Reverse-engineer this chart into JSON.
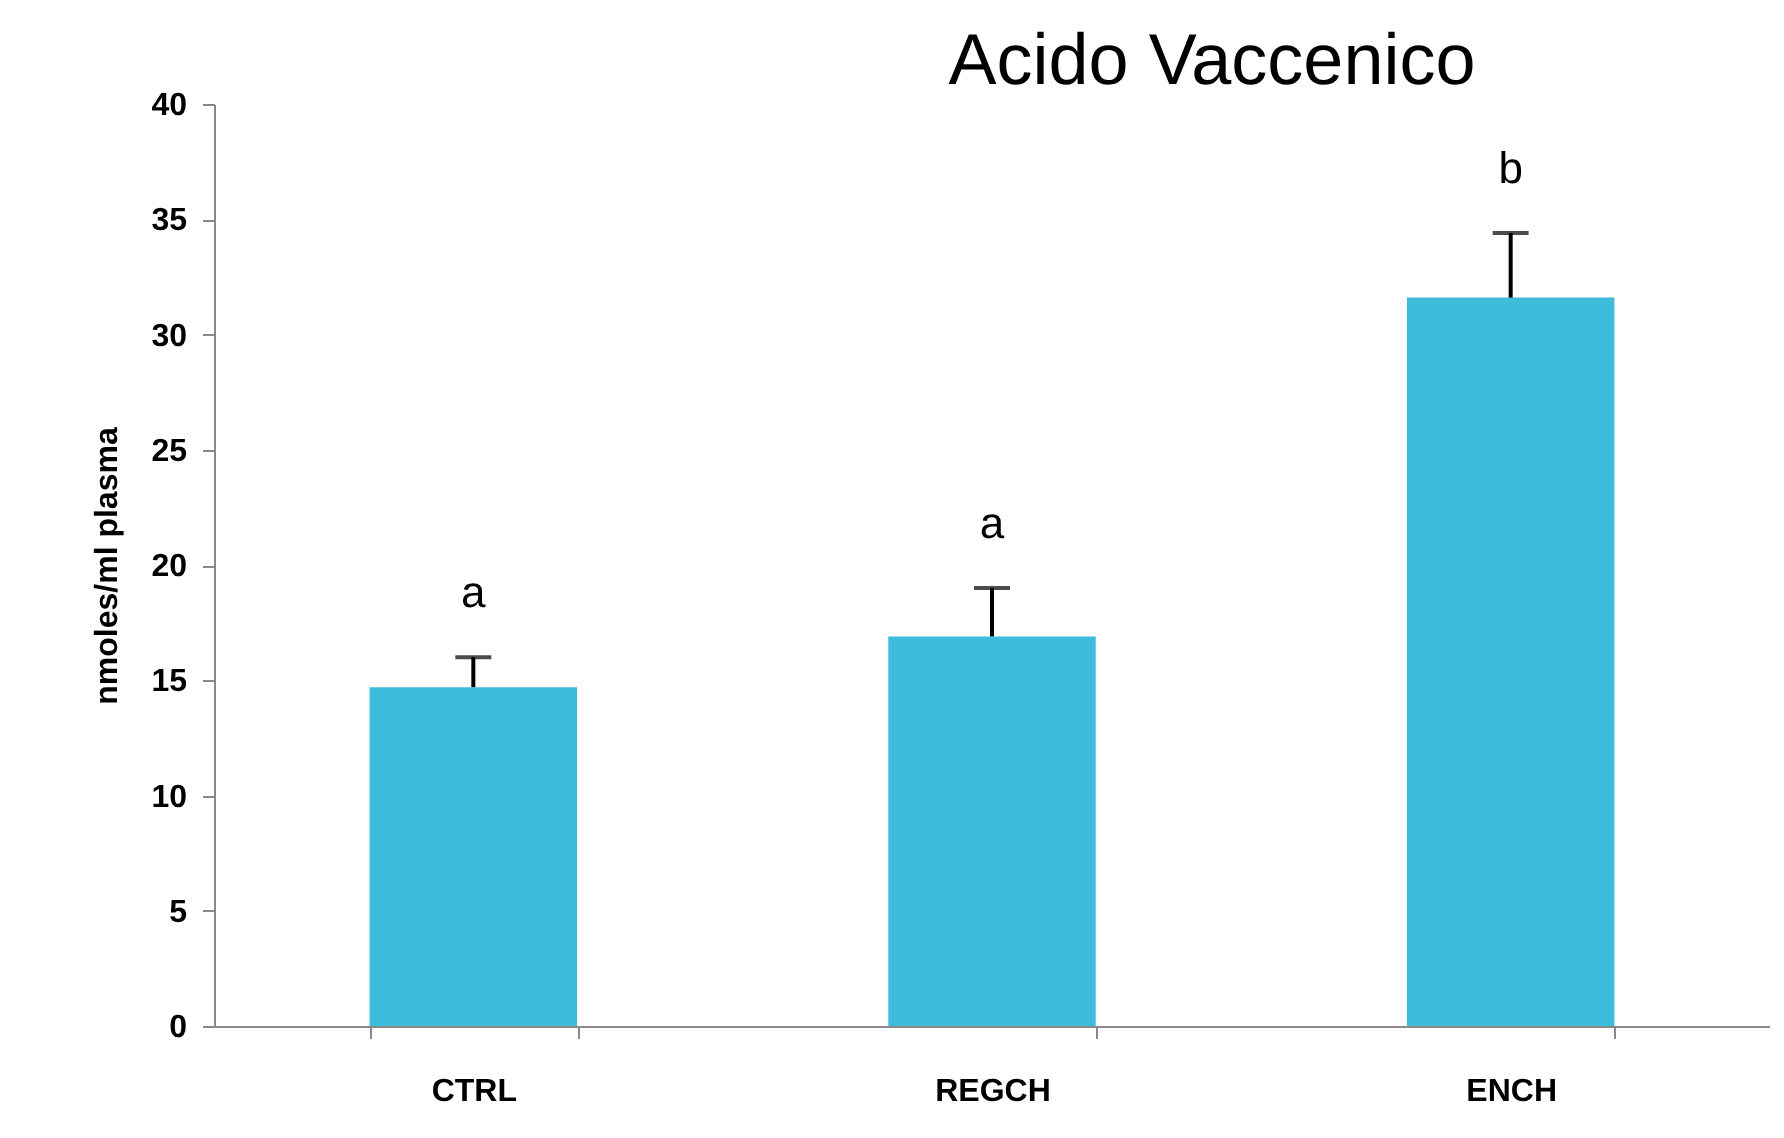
{
  "chart_data": {
    "type": "bar",
    "title": "Acido Vaccenico",
    "ylabel": "nmoles/ml plasma",
    "categories": [
      "CTRL",
      "REGCH",
      "ENCH"
    ],
    "values": [
      14.7,
      16.9,
      31.6
    ],
    "color": "#3ebcdc",
    "errors": [
      [
        14.7,
        16.0
      ],
      [
        16.9,
        19.0
      ],
      [
        31.6,
        34.4
      ]
    ],
    "ylim": [
      0,
      40
    ],
    "yticks": [
      0,
      5,
      10,
      15,
      20,
      25,
      30,
      35,
      40
    ],
    "grid": false,
    "annotations": [
      "a",
      "a",
      "b"
    ]
  }
}
